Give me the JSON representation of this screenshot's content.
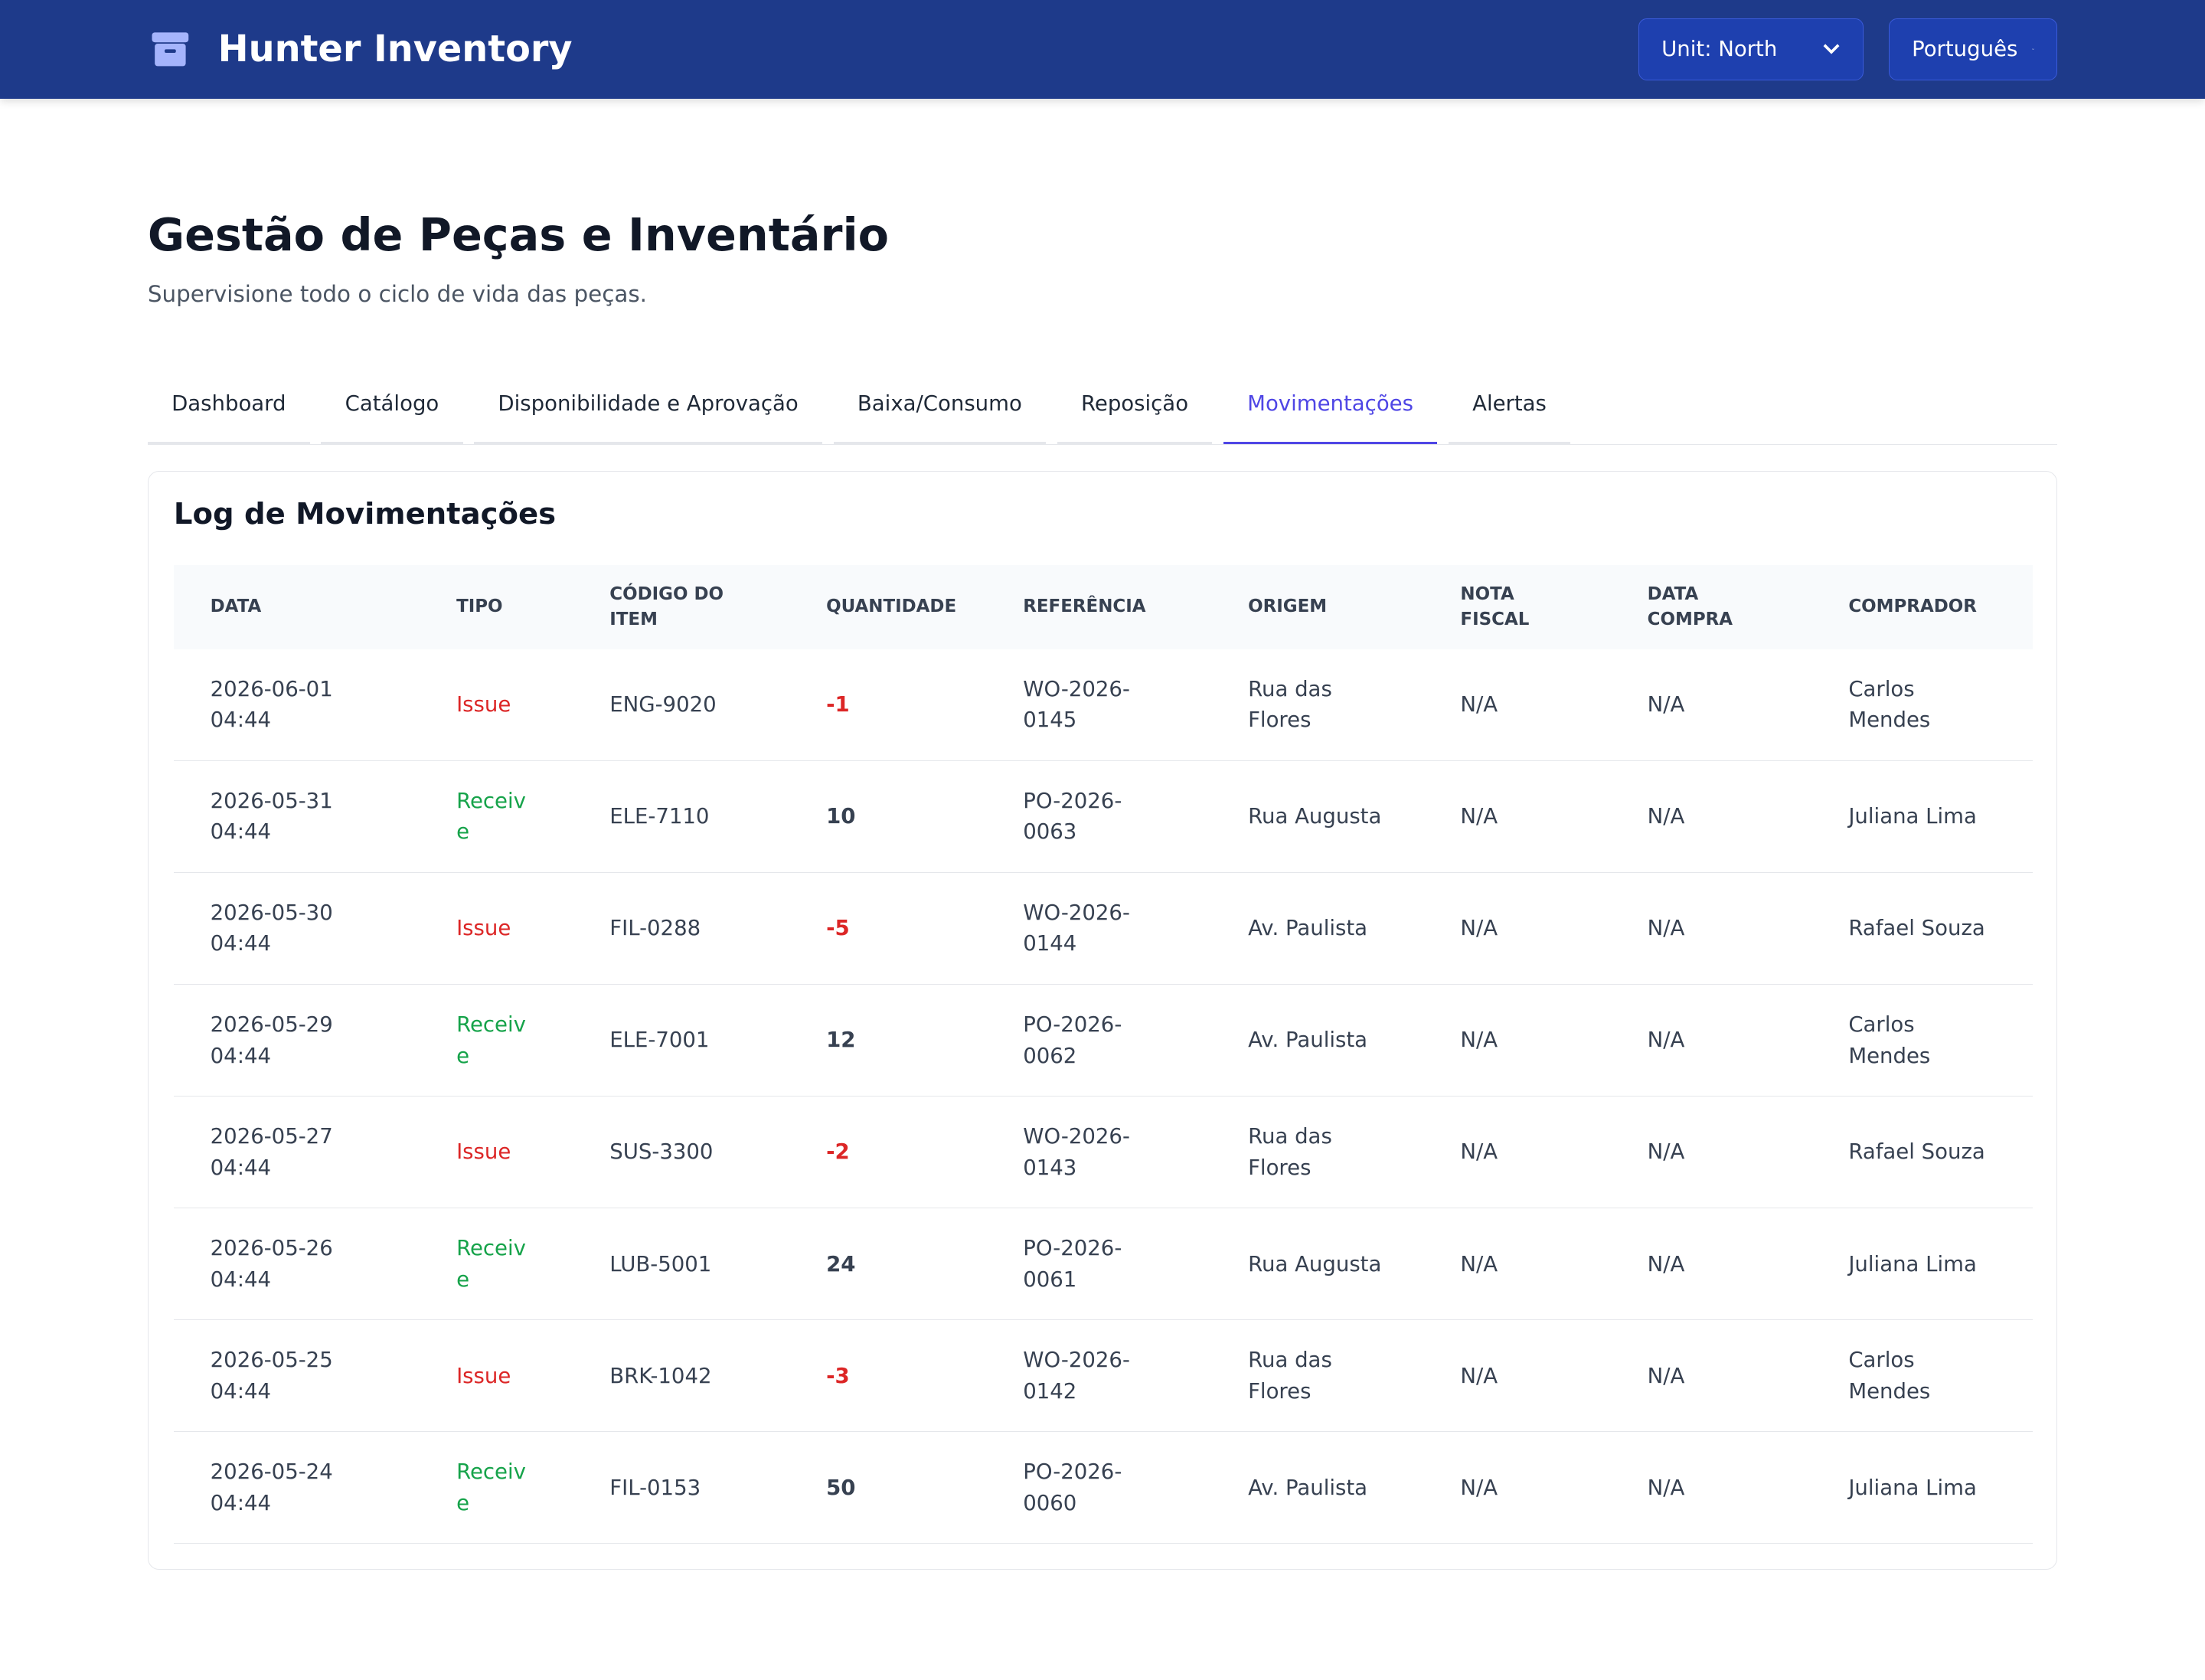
{
  "header": {
    "brand": "Hunter Inventory",
    "unit_select": "Unit: North",
    "language_select": "Português"
  },
  "page": {
    "title": "Gestão de Peças e Inventário",
    "subtitle": "Supervisione todo o ciclo de vida das peças."
  },
  "tabs": {
    "items": [
      "Dashboard",
      "Catálogo",
      "Disponibilidade e Aprovação",
      "Baixa/Consumo",
      "Reposição",
      "Movimentações",
      "Alertas"
    ],
    "active": 5
  },
  "table": {
    "title": "Log de Movimentações",
    "columns": [
      "DATA",
      "TIPO",
      "CÓDIGO DO ITEM",
      "QUANTIDADE",
      "REFERÊNCIA",
      "ORIGEM",
      "NOTA FISCAL",
      "DATA COMPRA",
      "COMPRADOR"
    ],
    "rows": [
      [
        "2026-06-01 04:44",
        "Issue",
        "ENG-9020",
        -1,
        "WO-2026-0145",
        "Rua das Flores",
        "N/A",
        "N/A",
        "Carlos Mendes"
      ],
      [
        "2026-05-31 04:44",
        "Receive",
        "ELE-7110",
        10,
        "PO-2026-0063",
        "Rua Augusta",
        "N/A",
        "N/A",
        "Juliana Lima"
      ],
      [
        "2026-05-30 04:44",
        "Issue",
        "FIL-0288",
        -5,
        "WO-2026-0144",
        "Av. Paulista",
        "N/A",
        "N/A",
        "Rafael Souza"
      ],
      [
        "2026-05-29 04:44",
        "Receive",
        "ELE-7001",
        12,
        "PO-2026-0062",
        "Av. Paulista",
        "N/A",
        "N/A",
        "Carlos Mendes"
      ],
      [
        "2026-05-27 04:44",
        "Issue",
        "SUS-3300",
        -2,
        "WO-2026-0143",
        "Rua das Flores",
        "N/A",
        "N/A",
        "Rafael Souza"
      ],
      [
        "2026-05-26 04:44",
        "Receive",
        "LUB-5001",
        24,
        "PO-2026-0061",
        "Rua Augusta",
        "N/A",
        "N/A",
        "Juliana Lima"
      ],
      [
        "2026-05-25 04:44",
        "Issue",
        "BRK-1042",
        -3,
        "WO-2026-0142",
        "Rua das Flores",
        "N/A",
        "N/A",
        "Carlos Mendes"
      ],
      [
        "2026-05-24 04:44",
        "Receive",
        "FIL-0153",
        50,
        "PO-2026-0060",
        "Av. Paulista",
        "N/A",
        "N/A",
        "Juliana Lima"
      ]
    ]
  }
}
